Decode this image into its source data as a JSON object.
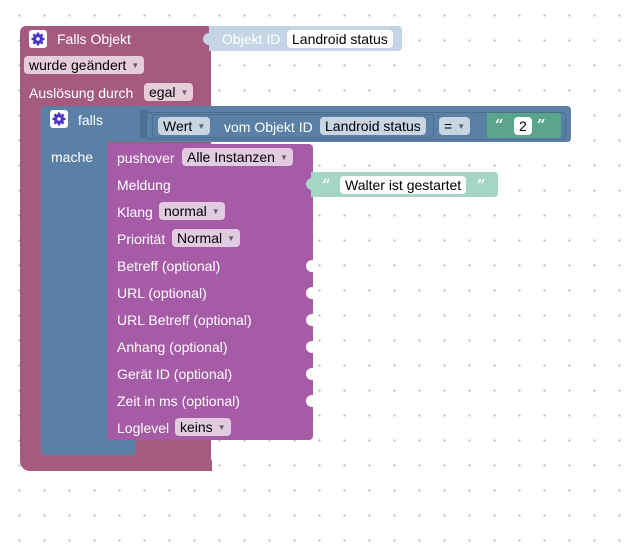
{
  "trigger": {
    "label": "Falls Objekt",
    "object_id_label": "Objekt ID",
    "object_id_value": "Landroid status",
    "condition": "wurde geändert",
    "trigger_by_label": "Auslösung durch",
    "trigger_by_value": "egal"
  },
  "if_block": {
    "if_label": "falls",
    "do_label": "mache",
    "compare": {
      "value_option": "Wert",
      "of_object_label": "vom Objekt ID",
      "object_id": "Landroid status",
      "operator": "=",
      "number": "2",
      "quote_open": "“",
      "quote_close": "”"
    }
  },
  "pushover": {
    "label": "pushover",
    "instance": "Alle Instanzen",
    "message_label": "Meldung",
    "message_value": "Walter ist gestartet",
    "sound_label": "Klang",
    "sound_value": "normal",
    "priority_label": "Priorität",
    "priority_value": "Normal",
    "subject_label": "Betreff (optional)",
    "url_label": "URL (optional)",
    "url_title_label": "URL Betreff (optional)",
    "attachment_label": "Anhang (optional)",
    "device_label": "Gerät ID (optional)",
    "time_label": "Zeit in ms (optional)",
    "loglevel_label": "Loglevel",
    "loglevel_value": "keins"
  },
  "colors": {
    "trigger_block": "#a55b80",
    "if_block": "#5b80a5",
    "pushover_block": "#a55ba5",
    "text_block": "#a5d5c5",
    "number_block": "#5ba58c",
    "object_id_block": "#c5d5e5",
    "gear_icon": "#4a34c4"
  },
  "icons": {
    "trigger_gear": "gear-icon",
    "if_gear": "gear-icon"
  }
}
